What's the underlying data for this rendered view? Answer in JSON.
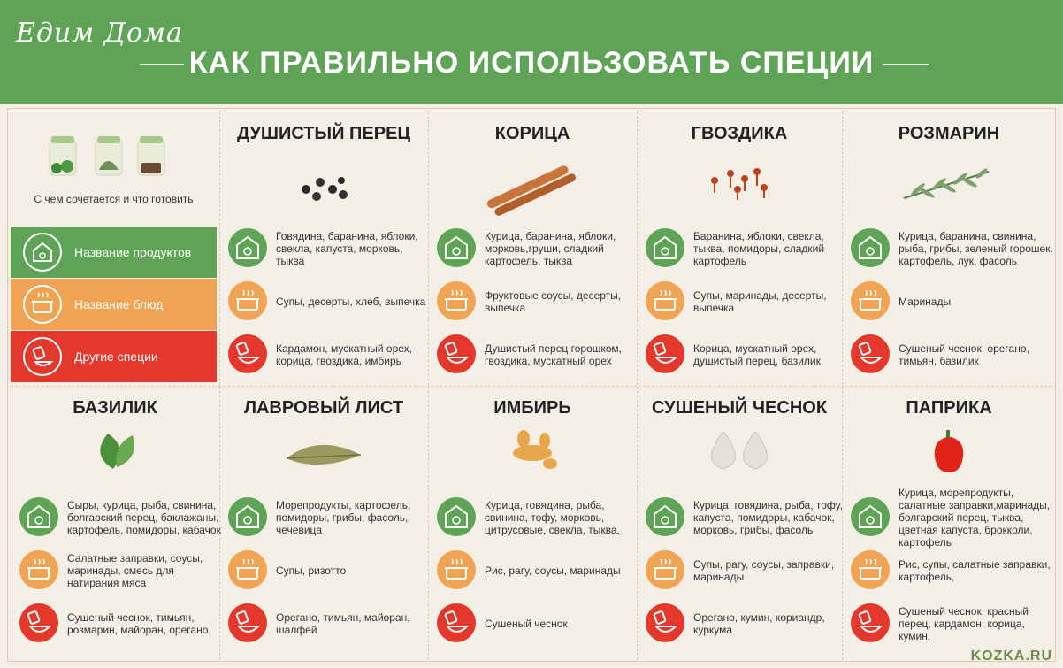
{
  "header": {
    "logo": "Едим Дома",
    "title": "КАК ПРАВИЛЬНО ИСПОЛЬЗОВАТЬ СПЕЦИИ"
  },
  "legend": {
    "caption": "С чем сочетается и что готовить",
    "items": [
      {
        "label": "Название продуктов",
        "color": "#5fa356"
      },
      {
        "label": "Название блюд",
        "color": "#f0a352"
      },
      {
        "label": "Другие специи",
        "color": "#e4382c"
      }
    ]
  },
  "spices": [
    {
      "name": "ДУШИСТЫЙ ПЕРЕЦ",
      "products": "Говядина, баранина, яблоки, свекла, капуста, морковь, тыква",
      "dishes": "Супы, десерты, хлеб, выпечка",
      "other": "Кардамон, мускатный орех, корица, гвоздика, имбирь"
    },
    {
      "name": "КОРИЦА",
      "products": "Курица, баранина, яблоки, морковь,груши, сладкий картофель, тыква",
      "dishes": "Фруктовые соусы, десерты, выпечка",
      "other": "Душистый перец горошком, гвоздика, мускатный орех"
    },
    {
      "name": "ГВОЗДИКА",
      "products": "Баранина, яблоки, свекла, тыква, помидоры, сладкий картофель",
      "dishes": "Супы, маринады, десерты, выпечка",
      "other": "Корица, мускатный орех, душистый перец, базилик"
    },
    {
      "name": "РОЗМАРИН",
      "products": "Курица, баранина, свинина, рыба, грибы, зеленый горошек, картофель, лук, фасоль",
      "dishes": "Маринады",
      "other": "Сушеный чеснок, орегано, тимьян, базилик"
    },
    {
      "name": "БАЗИЛИК",
      "products": "Сыры, курица, рыба, свинина, болгарский перец, баклажаны, картофель, помидоры, кабачок",
      "dishes": "Салатные заправки, соусы, маринады, смесь для натирания мяса",
      "other": "Сушеный чеснок, тимьян, розмарин, майоран, орегано"
    },
    {
      "name": "ЛАВРОВЫЙ ЛИСТ",
      "products": "Морепродукты, картофель, помидоры, грибы, фасоль, чечевица",
      "dishes": "Супы, ризотто",
      "other": "Орегано, тимьян, майоран, шалфей"
    },
    {
      "name": "ИМБИРЬ",
      "products": "Курица, говядина, рыба, свинина, тофу, морковь, цитрусовые, свекла, тыква,",
      "dishes": "Рис, рагу, соусы, маринады",
      "other": "Сушеный чеснок"
    },
    {
      "name": "СУШЕНЫЙ ЧЕСНОК",
      "products": "Курица, говядина, рыба, тофу, капуста, помидоры, кабачок, морковь, грибы, фасоль",
      "dishes": "Супы, рагу, соусы, заправки, маринады",
      "other": "Орегано, кумин, кориандр, куркума"
    },
    {
      "name": "ПАПРИКА",
      "products": "Курица, морепродукты, салатные заправки,маринады, болгарский перец, тыква, цветная капуста, брокколи, картофель",
      "dishes": "Рис, супы, салатные заправки, картофель,",
      "other": "Сушеный чеснок, красный перец, кардамон, корица, кумин."
    }
  ],
  "watermark": "KOZKA.RU",
  "icons": {
    "products": "jar-icon",
    "dishes": "pot-icon",
    "other": "spice-shaker-icon"
  }
}
